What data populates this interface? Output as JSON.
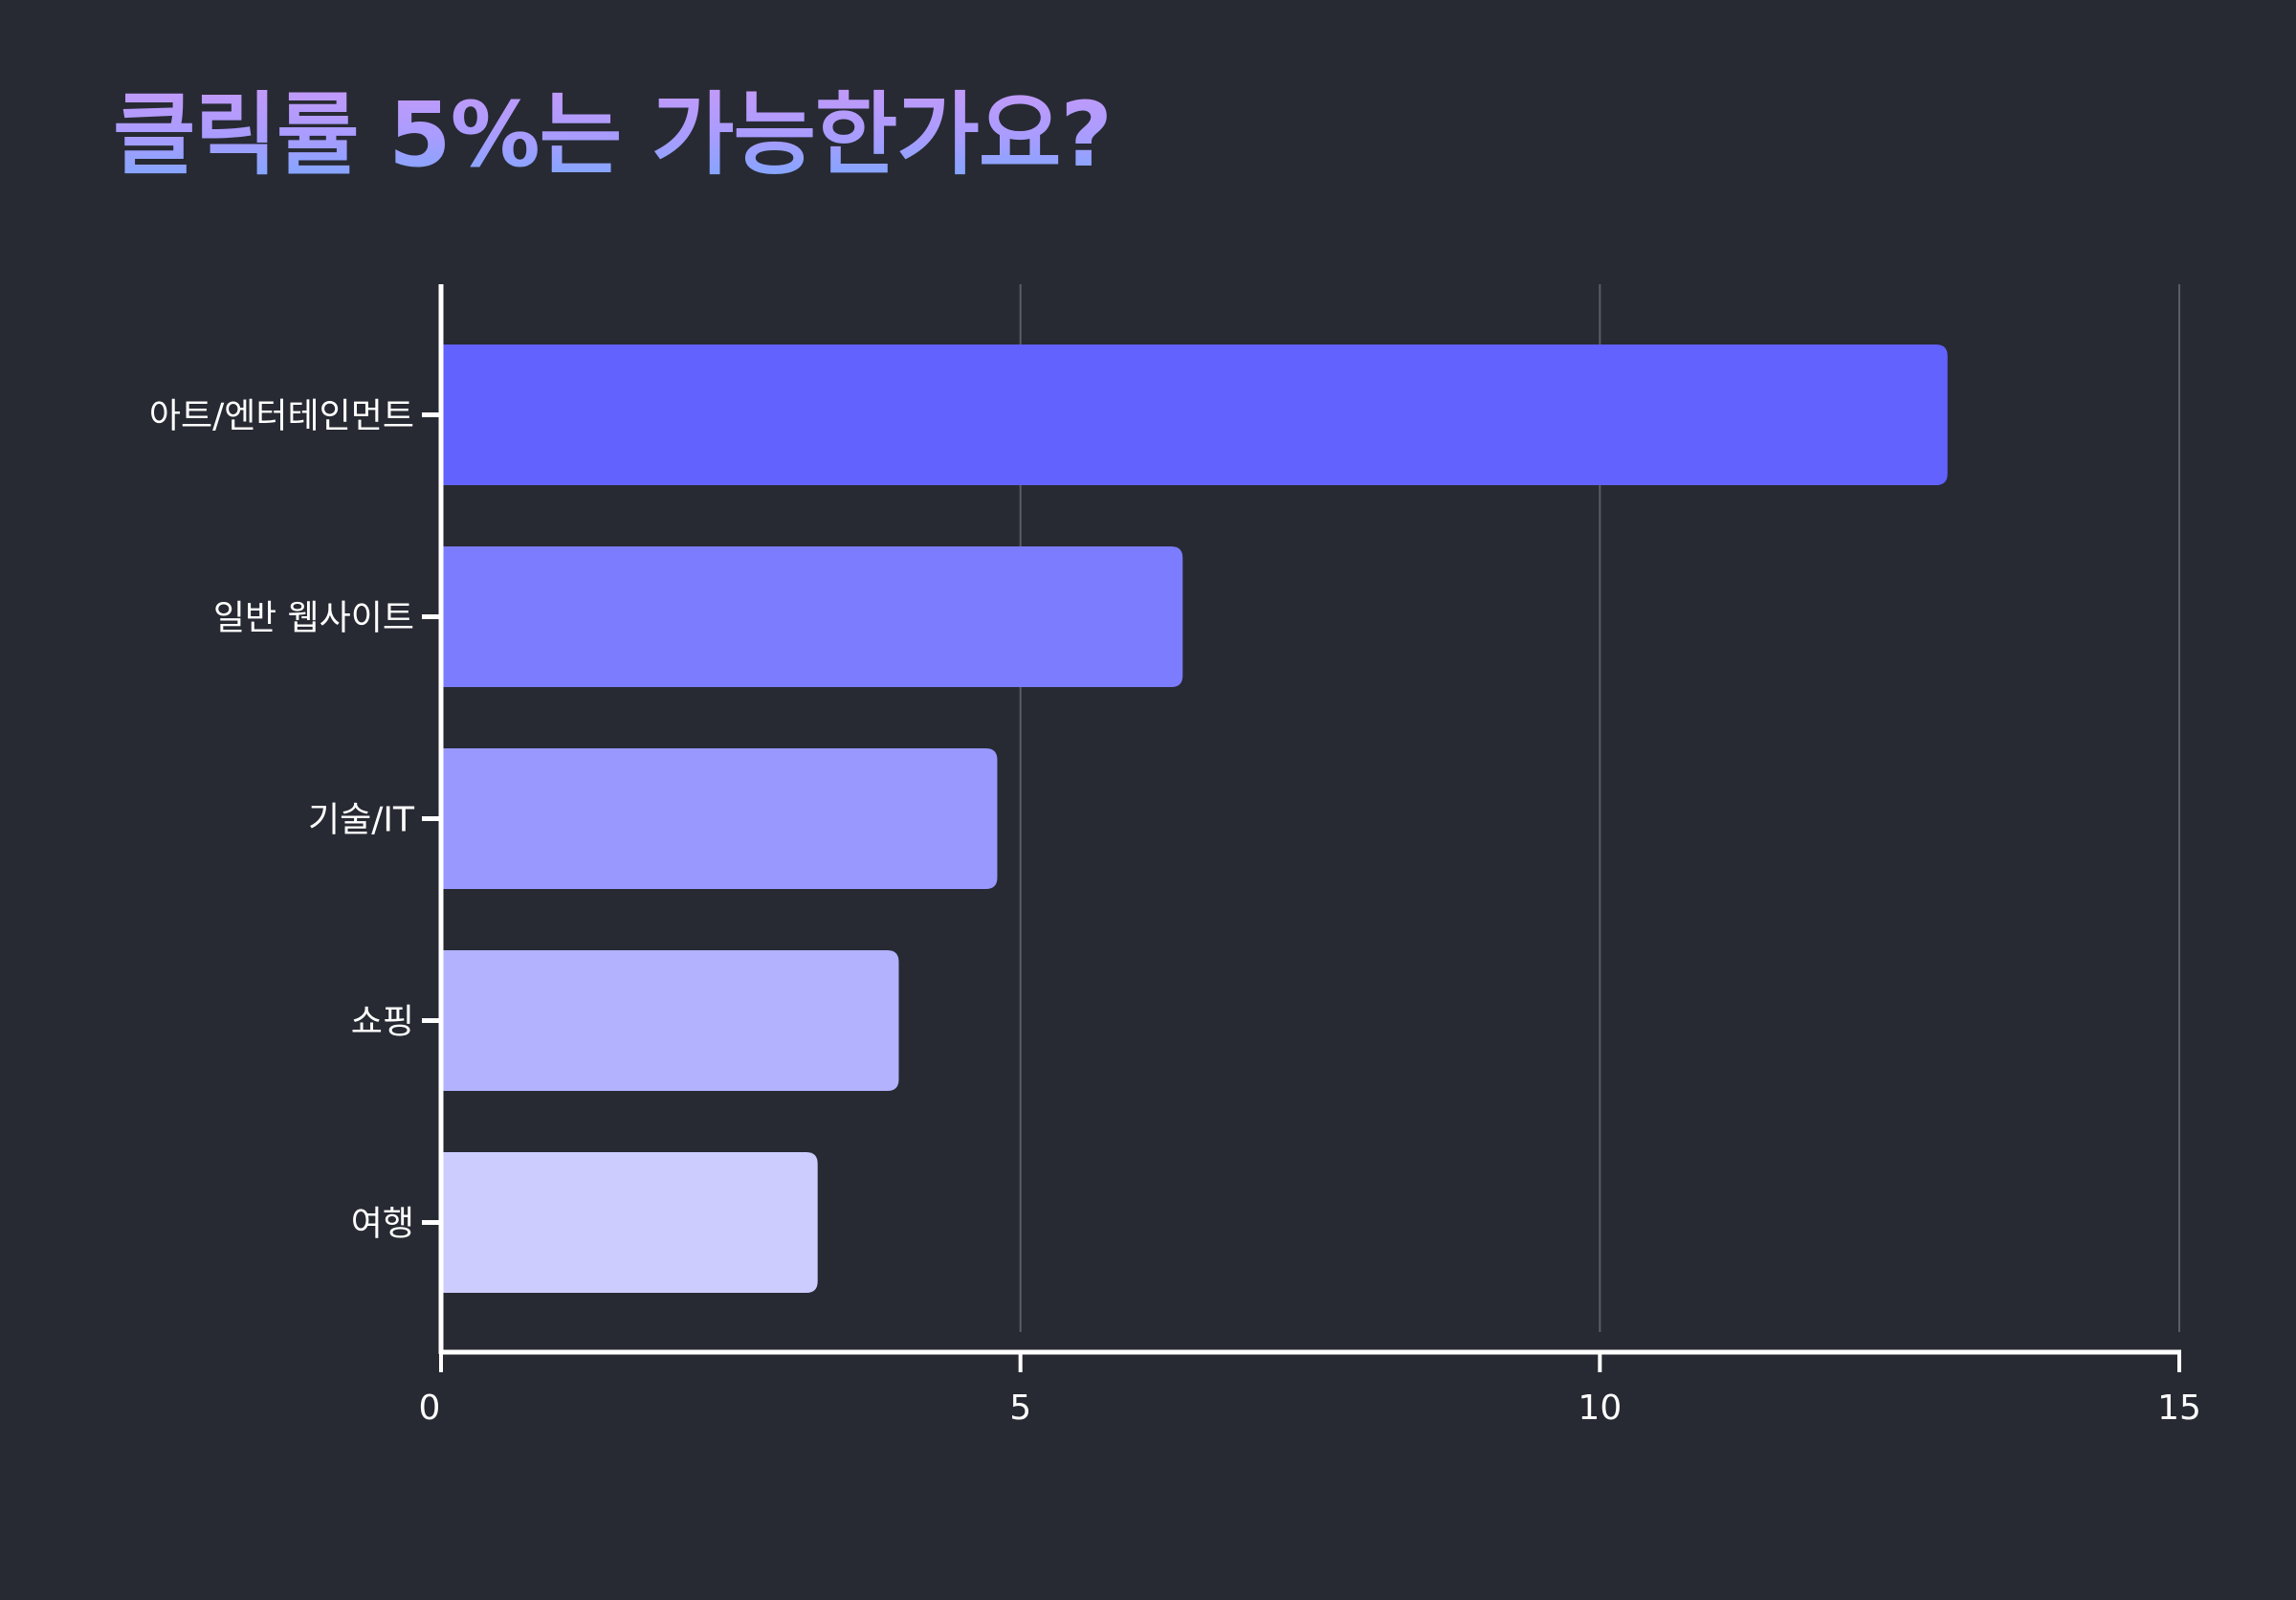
{
  "colors": {
    "background": "#272a33",
    "axis": "#ffffff",
    "grid": "#5a5d66",
    "text": "#ffffff",
    "bars": [
      "#6262ff",
      "#7c7cff",
      "#9898ff",
      "#b2b2ff",
      "#ccccff"
    ],
    "title_gradient": [
      "#7aa8ff",
      "#c49af8"
    ]
  },
  "chart_data": {
    "type": "bar",
    "orientation": "horizontal",
    "title": "클릭률 5%는 가능한가요?",
    "categories": [
      "아트/엔터테인먼트",
      "일반 웹사이트",
      "기술/IT",
      "쇼핑",
      "여행"
    ],
    "values": [
      13,
      6.4,
      4.8,
      3.95,
      3.25
    ],
    "xlabel": "",
    "ylabel": "",
    "xlim": [
      0,
      15
    ],
    "xticks": [
      0,
      5,
      10,
      15
    ],
    "grid": true,
    "legend": "none"
  }
}
